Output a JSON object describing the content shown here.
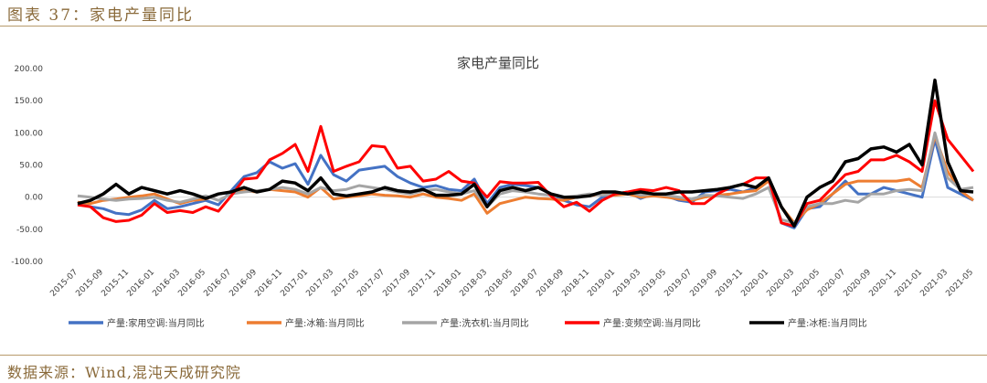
{
  "figure": {
    "label": "图表 37：家电产量同比",
    "source": "数据来源：Wind,混沌天成研究院"
  },
  "chart_data": {
    "type": "line",
    "title": "家电产量同比",
    "xlabel": "",
    "ylabel": "",
    "ylim": [
      -100,
      200
    ],
    "yticks": [
      "200.00",
      "150.00",
      "100.00",
      "50.00",
      "0.00",
      "-50.00",
      "-100.00"
    ],
    "ytick_values": [
      200,
      150,
      100,
      50,
      0,
      -50,
      -100
    ],
    "grid": false,
    "legend_position": "bottom",
    "x": [
      "2015-07",
      "2015-08",
      "2015-09",
      "2015-10",
      "2015-11",
      "2015-12",
      "2016-01",
      "2016-02",
      "2016-03",
      "2016-04",
      "2016-05",
      "2016-06",
      "2016-07",
      "2016-08",
      "2016-09",
      "2016-10",
      "2016-11",
      "2016-12",
      "2017-01",
      "2017-02",
      "2017-03",
      "2017-04",
      "2017-05",
      "2017-06",
      "2017-07",
      "2017-08",
      "2017-09",
      "2017-10",
      "2017-11",
      "2017-12",
      "2018-01",
      "2018-02",
      "2018-03",
      "2018-04",
      "2018-05",
      "2018-06",
      "2018-07",
      "2018-08",
      "2018-09",
      "2018-10",
      "2018-11",
      "2018-12",
      "2019-01",
      "2019-02",
      "2019-03",
      "2019-04",
      "2019-05",
      "2019-06",
      "2019-07",
      "2019-08",
      "2019-09",
      "2019-10",
      "2019-11",
      "2019-12",
      "2020-01",
      "2020-02",
      "2020-03",
      "2020-04",
      "2020-05",
      "2020-06",
      "2020-07",
      "2020-08",
      "2020-09",
      "2020-10",
      "2020-11",
      "2020-12",
      "2021-01",
      "2021-02",
      "2021-03",
      "2021-04",
      "2021-05"
    ],
    "xticks": [
      "2015-07",
      "2015-09",
      "2015-11",
      "2016-01",
      "2016-03",
      "2016-05",
      "2016-07",
      "2016-09",
      "2016-11",
      "2017-01",
      "2017-03",
      "2017-05",
      "2017-07",
      "2017-09",
      "2017-11",
      "2018-01",
      "2018-03",
      "2018-05",
      "2018-07",
      "2018-09",
      "2018-11",
      "2019-01",
      "2019-03",
      "2019-05",
      "2019-07",
      "2019-09",
      "2019-11",
      "2020-01",
      "2020-03",
      "2020-05",
      "2020-07",
      "2020-09",
      "2020-11",
      "2021-01",
      "2021-03",
      "2021-05"
    ],
    "series": [
      {
        "name": "产量:家用空调:当月同比",
        "color": "#4472c4",
        "values": [
          -10,
          -15,
          -18,
          -25,
          -27,
          -20,
          -5,
          -18,
          -15,
          -10,
          -5,
          -12,
          10,
          32,
          38,
          55,
          45,
          52,
          20,
          65,
          35,
          25,
          42,
          45,
          48,
          32,
          22,
          15,
          18,
          12,
          10,
          28,
          -10,
          15,
          20,
          18,
          15,
          5,
          -5,
          -12,
          -15,
          0,
          5,
          8,
          -2,
          5,
          2,
          -5,
          -8,
          8,
          10,
          12,
          8,
          15,
          28,
          -40,
          -48,
          -18,
          -15,
          5,
          25,
          5,
          5,
          15,
          10,
          5,
          0,
          90,
          15,
          5,
          -5
        ]
      },
      {
        "name": "产量:冰箱:当月同比",
        "color": "#ed7d31",
        "values": [
          -8,
          -10,
          -5,
          -3,
          0,
          2,
          5,
          -3,
          -10,
          -5,
          -3,
          5,
          8,
          10,
          8,
          12,
          10,
          8,
          0,
          15,
          -3,
          0,
          2,
          5,
          3,
          2,
          0,
          5,
          0,
          -2,
          -5,
          5,
          -25,
          -10,
          -5,
          0,
          -2,
          -3,
          -5,
          0,
          2,
          5,
          3,
          5,
          0,
          2,
          0,
          -3,
          -5,
          0,
          3,
          5,
          8,
          10,
          25,
          -15,
          -40,
          -20,
          -10,
          5,
          20,
          25,
          25,
          25,
          25,
          28,
          15,
          95,
          40,
          10,
          -5
        ]
      },
      {
        "name": "产量:洗衣机:当月同比",
        "color": "#a5a5a5",
        "values": [
          2,
          0,
          -3,
          -5,
          -3,
          -2,
          0,
          -5,
          -8,
          -3,
          2,
          -5,
          5,
          8,
          10,
          12,
          15,
          12,
          5,
          15,
          10,
          12,
          18,
          15,
          12,
          8,
          5,
          10,
          12,
          8,
          5,
          10,
          -15,
          5,
          10,
          8,
          5,
          3,
          0,
          2,
          5,
          3,
          5,
          8,
          3,
          5,
          3,
          0,
          -3,
          3,
          2,
          0,
          -2,
          5,
          15,
          -35,
          -40,
          -15,
          -10,
          -10,
          -5,
          -8,
          5,
          5,
          10,
          12,
          10,
          100,
          30,
          12,
          15
        ]
      },
      {
        "name": "产量:变频空调:当月同比",
        "color": "#ff0000",
        "values": [
          -12,
          -15,
          -32,
          -38,
          -36,
          -28,
          -10,
          -24,
          -21,
          -24,
          -15,
          -22,
          2,
          28,
          30,
          58,
          68,
          82,
          40,
          110,
          40,
          48,
          55,
          80,
          78,
          45,
          48,
          25,
          28,
          40,
          25,
          22,
          0,
          24,
          22,
          22,
          23,
          2,
          -15,
          -8,
          -22,
          -5,
          5,
          8,
          12,
          10,
          15,
          10,
          -10,
          -10,
          5,
          15,
          20,
          30,
          30,
          -40,
          -45,
          -10,
          -5,
          15,
          35,
          40,
          58,
          58,
          65,
          55,
          40,
          150,
          90,
          65,
          40
        ]
      },
      {
        "name": "产量:冰柜:当月同比",
        "color": "#000000",
        "values": [
          -10,
          -5,
          5,
          20,
          5,
          15,
          10,
          5,
          10,
          5,
          -2,
          5,
          8,
          15,
          8,
          12,
          25,
          22,
          10,
          30,
          5,
          2,
          5,
          8,
          15,
          10,
          8,
          12,
          3,
          3,
          5,
          20,
          -15,
          10,
          15,
          10,
          15,
          5,
          0,
          0,
          2,
          8,
          8,
          5,
          8,
          5,
          5,
          8,
          8,
          10,
          12,
          15,
          20,
          15,
          30,
          -15,
          -45,
          0,
          15,
          25,
          55,
          60,
          75,
          78,
          70,
          82,
          50,
          182,
          55,
          10,
          8
        ]
      }
    ]
  }
}
